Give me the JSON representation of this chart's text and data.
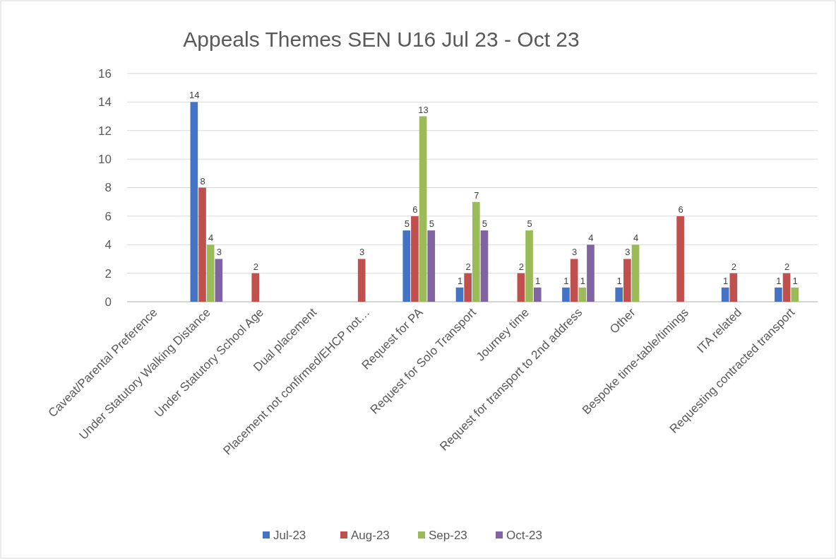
{
  "chart_data": {
    "type": "bar",
    "title": "Appeals Themes SEN U16  Jul 23 - Oct 23",
    "categories": [
      "Caveat/Parental Preference",
      "Under Statutory Walking Distance",
      "Under Statutory School Age",
      "Dual placement",
      "Placement not confirmed/EHCP not…",
      "Request for PA",
      "Request for Solo Transport",
      "Journey time",
      "Request for transport to 2nd address",
      "Other",
      "Bespoke time-table/timings",
      "ITA related",
      "Requesting contracted transport"
    ],
    "series": [
      {
        "name": "Jul-23",
        "color": "#4472c4",
        "values": [
          null,
          14,
          null,
          null,
          null,
          5,
          1,
          null,
          1,
          1,
          null,
          1,
          1
        ]
      },
      {
        "name": "Aug-23",
        "color": "#c0504d",
        "values": [
          null,
          8,
          2,
          null,
          3,
          6,
          2,
          2,
          3,
          3,
          6,
          2,
          2
        ]
      },
      {
        "name": "Sep-23",
        "color": "#9bbb59",
        "values": [
          null,
          4,
          null,
          null,
          null,
          13,
          7,
          5,
          1,
          4,
          null,
          null,
          1
        ]
      },
      {
        "name": "Oct-23",
        "color": "#8064a2",
        "values": [
          null,
          3,
          null,
          null,
          null,
          5,
          5,
          1,
          4,
          null,
          null,
          null,
          null
        ]
      }
    ],
    "ylim": [
      0,
      16
    ],
    "yticks": [
      0,
      2,
      4,
      6,
      8,
      10,
      12,
      14,
      16
    ],
    "grid": "y",
    "legend": "bottom",
    "data_labels": true
  }
}
